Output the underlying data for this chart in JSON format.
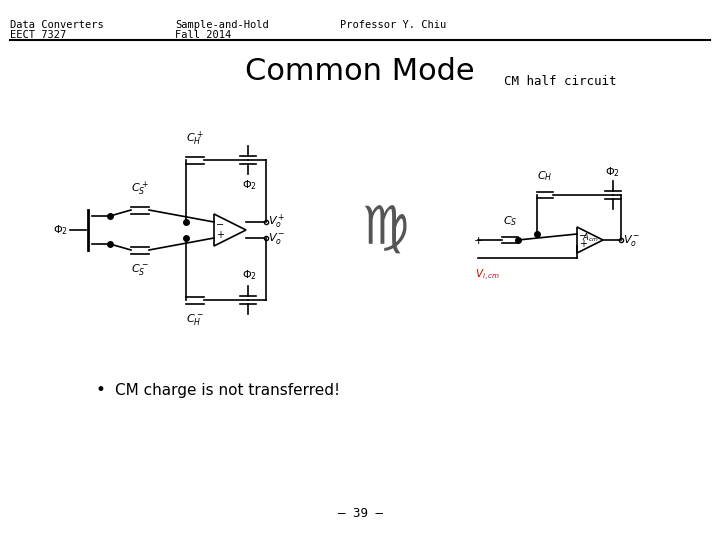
{
  "bg_color": "#ffffff",
  "header_left1": "Data Converters",
  "header_left2": "EECT 7327",
  "header_mid1": "Sample-and-Hold",
  "header_mid2": "Fall 2014",
  "header_right": "Professor Y. Chiu",
  "title": "Common Mode",
  "cm_half_label": "CM half circuit",
  "bullet_text": "CM charge is not transferred!",
  "page_num": "– 39 –",
  "line_color": "#000000",
  "text_color": "#000000",
  "gray_color": "#888888"
}
